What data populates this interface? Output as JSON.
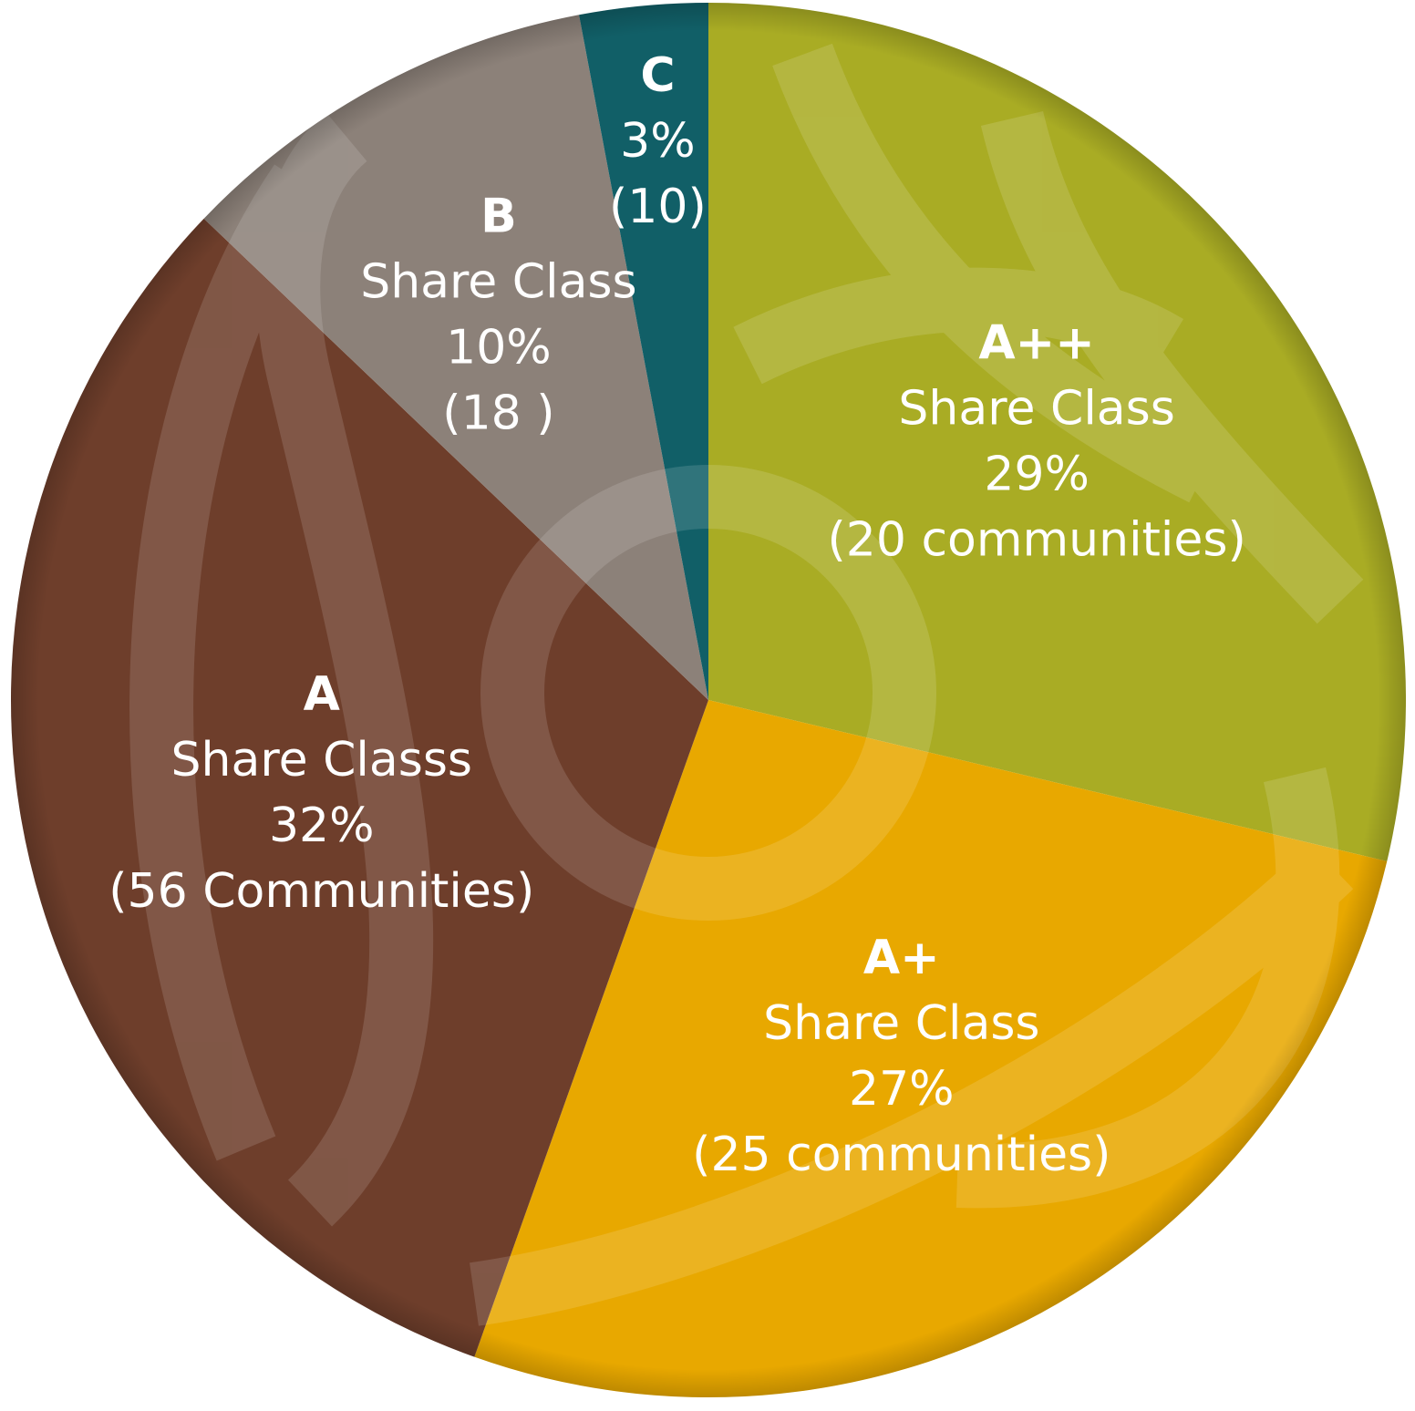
{
  "chart_data": {
    "type": "pie",
    "slices": [
      {
        "label": "A++",
        "line2": "Share Class",
        "percent_label": "29%",
        "count_label": "(20 communities)",
        "value": 29,
        "color": "#a9ac24"
      },
      {
        "label": "A+",
        "line2": "Share Class",
        "percent_label": "27%",
        "count_label": "(25 communities)",
        "value": 27,
        "color": "#e8a800"
      },
      {
        "label": "A",
        "line2": "Share Classs",
        "percent_label": "32%",
        "count_label": "(56 Communities)",
        "value": 32,
        "color": "#6e3e2b"
      },
      {
        "label": "B",
        "line2": "Share Class",
        "percent_label": "10%",
        "count_label": "(18 )",
        "value": 10,
        "color": "#8c8179"
      },
      {
        "label": "C",
        "line2": "",
        "percent_label": "3%",
        "count_label": "(10)",
        "value": 3,
        "color": "#115f67"
      }
    ],
    "start_angle_deg": 0,
    "direction": "clockwise",
    "legend": "none"
  }
}
